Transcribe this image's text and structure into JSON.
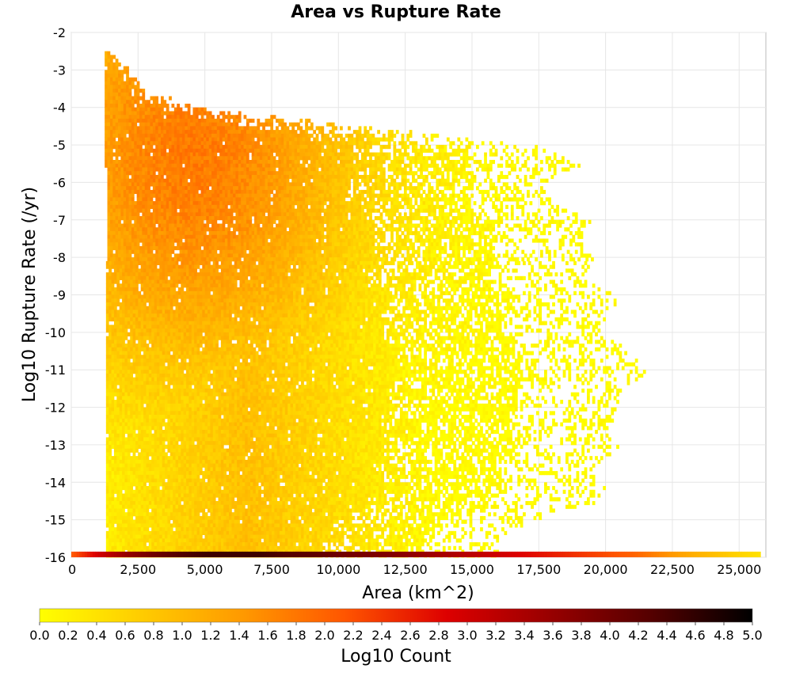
{
  "chart_data": {
    "type": "heatmap",
    "title": "Area vs Rupture Rate",
    "xlabel": "Area (km^2)",
    "ylabel": "Log10 Rupture Rate (/yr)",
    "xlim": [
      0,
      26000
    ],
    "ylim": [
      -16,
      -2
    ],
    "x_ticks": [
      0,
      2500,
      5000,
      7500,
      10000,
      12500,
      15000,
      17500,
      20000,
      22500,
      25000
    ],
    "x_tick_labels": [
      "0",
      "2,500",
      "5,000",
      "7,500",
      "10,000",
      "12,500",
      "15,000",
      "17,500",
      "20,000",
      "22,500",
      "25,000"
    ],
    "y_ticks": [
      -2,
      -3,
      -4,
      -5,
      -6,
      -7,
      -8,
      -9,
      -10,
      -11,
      -12,
      -13,
      -14,
      -15,
      -16
    ],
    "y_tick_labels": [
      "-2",
      "-3",
      "-4",
      "-5",
      "-6",
      "-7",
      "-8",
      "-9",
      "-10",
      "-11",
      "-12",
      "-13",
      "-14",
      "-15",
      "-16"
    ],
    "grid": true,
    "colorbar": {
      "label": "Log10 Count",
      "range": [
        0,
        5
      ],
      "ticks": [
        0.0,
        0.2,
        0.4,
        0.6,
        0.8,
        1.0,
        1.2,
        1.4,
        1.6,
        1.8,
        2.0,
        2.2,
        2.4,
        2.6,
        2.8,
        3.0,
        3.2,
        3.4,
        3.6,
        3.8,
        4.0,
        4.2,
        4.4,
        4.6,
        4.8,
        5.0
      ],
      "tick_labels": [
        "0.0",
        "0.2",
        "0.4",
        "0.6",
        "0.8",
        "1.0",
        "1.2",
        "1.4",
        "1.6",
        "1.8",
        "2.0",
        "2.2",
        "2.4",
        "2.6",
        "2.8",
        "3.0",
        "3.2",
        "3.4",
        "3.6",
        "3.8",
        "4.0",
        "4.2",
        "4.4",
        "4.6",
        "4.8",
        "5.0"
      ],
      "colors": [
        "#ffff00",
        "#ffcc00",
        "#ff9900",
        "#ff5500",
        "#dd0000",
        "#990000",
        "#550000",
        "#000000"
      ]
    },
    "bottom_row": {
      "y": -16,
      "points": [
        [
          0,
          2.1
        ],
        [
          1000,
          3.0
        ],
        [
          2000,
          3.6
        ],
        [
          3000,
          4.0
        ],
        [
          4000,
          4.3
        ],
        [
          5000,
          4.5
        ],
        [
          6000,
          4.5
        ],
        [
          7000,
          4.5
        ],
        [
          8000,
          4.3
        ],
        [
          9000,
          4.2
        ],
        [
          10000,
          4.0
        ],
        [
          11000,
          3.9
        ],
        [
          12000,
          3.8
        ],
        [
          13000,
          3.6
        ],
        [
          14000,
          3.4
        ],
        [
          15000,
          3.2
        ],
        [
          16000,
          3.0
        ],
        [
          17000,
          2.8
        ],
        [
          18000,
          2.6
        ],
        [
          19000,
          2.4
        ],
        [
          20000,
          2.2
        ],
        [
          21000,
          2.0
        ],
        [
          22000,
          1.6
        ],
        [
          23000,
          1.2
        ],
        [
          24000,
          0.9
        ],
        [
          25000,
          0.6
        ],
        [
          25800,
          0.4
        ]
      ]
    },
    "envelope": {
      "description_free": true,
      "max_area_by_rate": [
        [
          -2.5,
          1500
        ],
        [
          -3,
          2200
        ],
        [
          -3.5,
          2800
        ],
        [
          -4,
          5000
        ],
        [
          -4.5,
          11500
        ],
        [
          -5,
          17500
        ],
        [
          -5.5,
          19000
        ],
        [
          -6,
          17500
        ],
        [
          -6.5,
          18000
        ],
        [
          -7,
          19500
        ],
        [
          -7.5,
          19000
        ],
        [
          -8,
          19500
        ],
        [
          -8.5,
          19000
        ],
        [
          -9,
          20500
        ],
        [
          -9.5,
          20000
        ],
        [
          -10,
          20000
        ],
        [
          -10.5,
          21000
        ],
        [
          -11,
          21500
        ],
        [
          -11.5,
          20500
        ],
        [
          -12,
          20500
        ],
        [
          -12.5,
          20000
        ],
        [
          -13,
          20500
        ],
        [
          -13.5,
          19500
        ],
        [
          -14,
          20000
        ],
        [
          -14.5,
          19500
        ],
        [
          -15,
          17000
        ],
        [
          -15.5,
          16000
        ]
      ],
      "min_area": 1250,
      "peak": [
        4500,
        -5.2
      ],
      "peak_value": 1.75
    }
  }
}
